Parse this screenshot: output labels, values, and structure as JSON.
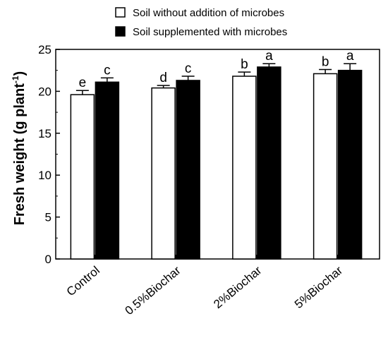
{
  "chart_data": {
    "type": "bar",
    "categories": [
      "Control",
      "0.5%Biochar",
      "2%Biochar",
      "5%Biochar"
    ],
    "series": [
      {
        "name": "Soil without addition of microbes",
        "color": "#ffffff",
        "values": [
          19.6,
          20.4,
          21.8,
          22.1
        ],
        "errors": [
          0.5,
          0.3,
          0.5,
          0.5
        ],
        "significance": [
          "e",
          "d",
          "b",
          "b"
        ]
      },
      {
        "name": "Soil supplemented with microbes",
        "color": "#000000",
        "values": [
          21.1,
          21.3,
          22.9,
          22.5
        ],
        "errors": [
          0.5,
          0.5,
          0.4,
          0.8
        ],
        "significance": [
          "c",
          "c",
          "a",
          "a"
        ]
      }
    ],
    "ylabel": "Fresh weight (g plant",
    "ylabel_superscript": "-1",
    "ylabel_close": ")",
    "ylim": [
      0,
      25
    ],
    "yticks": [
      "0",
      "5",
      "10",
      "15",
      "20",
      "25"
    ],
    "legend_position": "top",
    "grid": false
  }
}
